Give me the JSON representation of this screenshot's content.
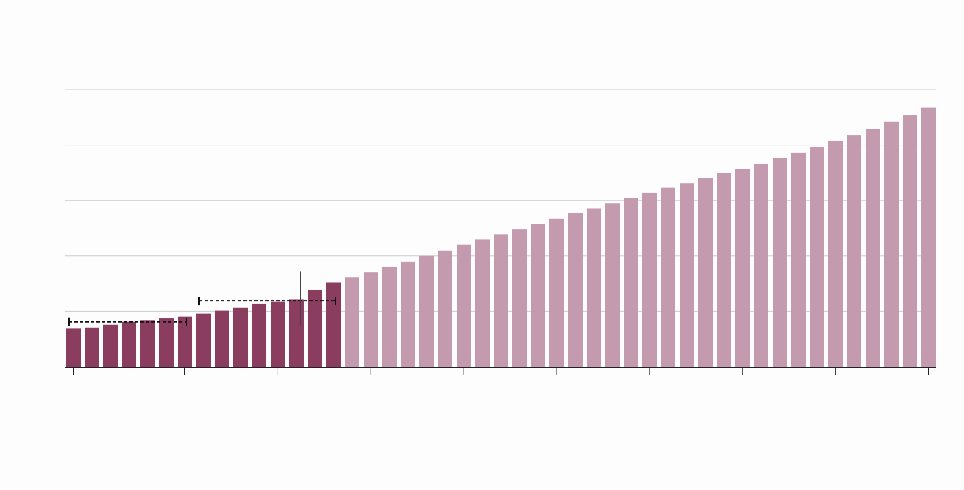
{
  "chart_data": {
    "type": "bar",
    "title": "",
    "xlabel": "",
    "ylabel": "",
    "ylim": [
      0,
      5
    ],
    "grid": true,
    "series": [
      {
        "status": "historical",
        "values": [
          0.69,
          0.71,
          0.76,
          0.81,
          0.84,
          0.88,
          0.91,
          0.96,
          1.01,
          1.07,
          1.13,
          1.17,
          1.21,
          1.39,
          1.52
        ]
      },
      {
        "status": "projected",
        "values": [
          1.61,
          1.71,
          1.8,
          1.9,
          2.0,
          2.1,
          2.2,
          2.29,
          2.39,
          2.48,
          2.58,
          2.67,
          2.77,
          2.86,
          2.95,
          3.05,
          3.14,
          3.23,
          3.31,
          3.4,
          3.49,
          3.57,
          3.66,
          3.76,
          3.86,
          3.96,
          4.07,
          4.18,
          4.29,
          4.42,
          4.54,
          4.67
        ]
      }
    ],
    "annotations": [
      {
        "kind": "range-bracket",
        "from_bar": 0,
        "to_bar": 6,
        "level": 0.81
      },
      {
        "kind": "range-bracket",
        "from_bar": 7,
        "to_bar": 14,
        "level": 1.19
      },
      {
        "kind": "callout-line",
        "bar": 1,
        "top": 3.08
      },
      {
        "kind": "callout-line",
        "bar": 12,
        "top": 1.72
      }
    ],
    "x_tick_count": 10,
    "colors": {
      "historical": "#8b3d60",
      "projected": "#c49bae",
      "grid": "#cccccc",
      "axis": "#222222",
      "bracket": "#111111",
      "callout": "#444444",
      "background": "#fdfdfd"
    }
  }
}
